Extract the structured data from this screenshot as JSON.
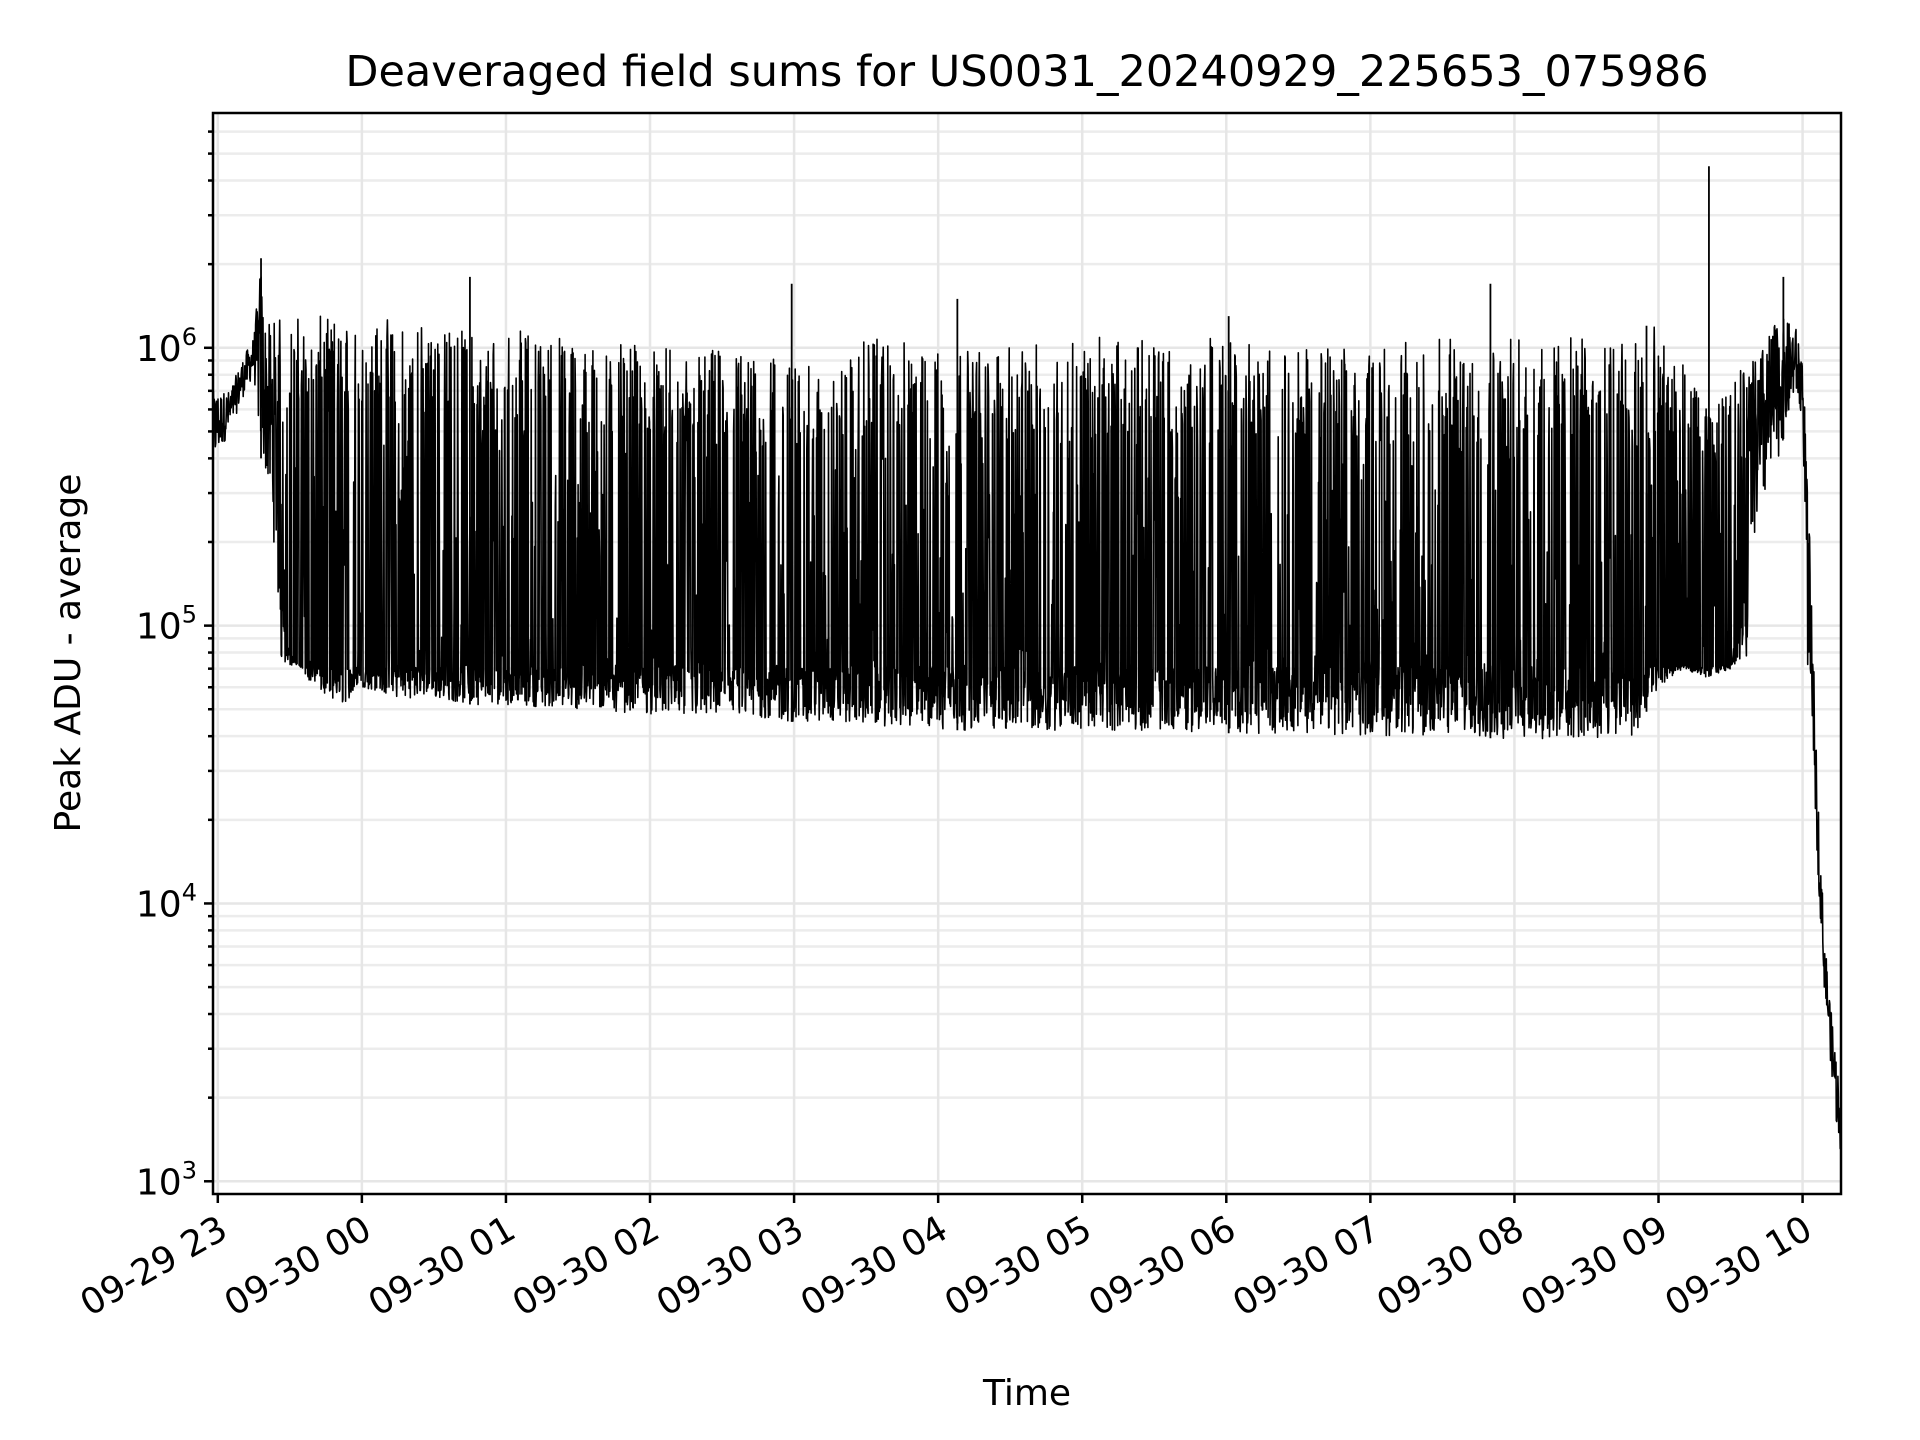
{
  "chart_data": {
    "type": "line",
    "title": "Deaveraged field sums for US0031_20240929_225653_075986",
    "xlabel": "Time",
    "ylabel": "Peak ADU - average",
    "yscale": "log",
    "ylim": [
      900,
      7000000
    ],
    "xlim": [
      "2024-09-29 22:58",
      "2024-09-30 10:16"
    ],
    "grid": true,
    "legend": "none",
    "x_ticks": [
      {
        "value": "2024-09-29 23:00",
        "label": "09-29 23"
      },
      {
        "value": "2024-09-30 00:00",
        "label": "09-30 00"
      },
      {
        "value": "2024-09-30 01:00",
        "label": "09-30 01"
      },
      {
        "value": "2024-09-30 02:00",
        "label": "09-30 02"
      },
      {
        "value": "2024-09-30 03:00",
        "label": "09-30 03"
      },
      {
        "value": "2024-09-30 04:00",
        "label": "09-30 04"
      },
      {
        "value": "2024-09-30 05:00",
        "label": "09-30 05"
      },
      {
        "value": "2024-09-30 06:00",
        "label": "09-30 06"
      },
      {
        "value": "2024-09-30 07:00",
        "label": "09-30 07"
      },
      {
        "value": "2024-09-30 08:00",
        "label": "09-30 08"
      },
      {
        "value": "2024-09-30 09:00",
        "label": "09-30 09"
      },
      {
        "value": "2024-09-30 10:00",
        "label": "09-30 10"
      }
    ],
    "y_ticks": [
      {
        "value": 1000,
        "base": "10",
        "exp": "3"
      },
      {
        "value": 10000,
        "base": "10",
        "exp": "4"
      },
      {
        "value": 100000,
        "base": "10",
        "exp": "5"
      },
      {
        "value": 1000000,
        "base": "10",
        "exp": "6"
      }
    ],
    "series": [
      {
        "color": "#000000",
        "x": [
          "2024-09-29 22:58",
          "2024-09-29 23:05",
          "2024-09-29 23:10",
          "2024-09-29 23:15",
          "2024-09-29 23:18",
          "2024-09-29 23:20",
          "2024-09-29 23:25",
          "2024-09-29 23:30",
          "2024-09-29 23:35",
          "2024-09-29 23:40",
          "2024-09-29 23:45",
          "2024-09-29 23:50",
          "2024-09-30 00:00",
          "2024-09-30 00:15",
          "2024-09-30 00:30",
          "2024-09-30 00:45",
          "2024-09-30 01:00",
          "2024-09-30 01:30",
          "2024-09-30 02:00",
          "2024-09-30 02:30",
          "2024-09-30 03:00",
          "2024-09-30 03:15",
          "2024-09-30 03:30",
          "2024-09-30 04:00",
          "2024-09-30 04:30",
          "2024-09-30 05:00",
          "2024-09-30 05:30",
          "2024-09-30 06:00",
          "2024-09-30 06:30",
          "2024-09-30 07:00",
          "2024-09-30 07:30",
          "2024-09-30 08:00",
          "2024-09-30 08:30",
          "2024-09-30 08:50",
          "2024-09-30 09:00",
          "2024-09-30 09:10",
          "2024-09-30 09:20",
          "2024-09-30 09:30",
          "2024-09-30 09:40",
          "2024-09-30 09:50",
          "2024-09-30 09:57",
          "2024-09-30 10:00",
          "2024-09-30 10:03",
          "2024-09-30 10:06",
          "2024-09-30 10:09",
          "2024-09-30 10:12",
          "2024-09-30 10:15"
        ],
        "y_low": [
          380000,
          500000,
          650000,
          800000,
          400000,
          350000,
          150000,
          80000,
          70000,
          60000,
          55000,
          50000,
          60000,
          55000,
          55000,
          52000,
          52000,
          50000,
          48000,
          46000,
          45000,
          45000,
          44000,
          42000,
          42000,
          42000,
          42000,
          41000,
          41000,
          40000,
          40000,
          39000,
          39000,
          40000,
          60000,
          70000,
          65000,
          70000,
          200000,
          400000,
          700000,
          500000,
          80000,
          15000,
          5000,
          2500,
          1300
        ],
        "y_high": [
          700000,
          700000,
          900000,
          1100000,
          2100000,
          1200000,
          1300000,
          1300000,
          1300000,
          1300000,
          1300000,
          1300000,
          1300000,
          1300000,
          1200000,
          1200000,
          1200000,
          1100000,
          1000000,
          1000000,
          900000,
          800000,
          1100000,
          1000000,
          1000000,
          1100000,
          1100000,
          1100000,
          1000000,
          1000000,
          1100000,
          1100000,
          1100000,
          1200000,
          1200000,
          900000,
          600000,
          800000,
          900000,
          1300000,
          1200000,
          1000000,
          200000,
          30000,
          8000,
          4000,
          2500
        ],
        "spikes": [
          {
            "x": "2024-09-29 23:18",
            "y": 2100000
          },
          {
            "x": "2024-09-30 00:45",
            "y": 1800000
          },
          {
            "x": "2024-09-30 02:59",
            "y": 1700000
          },
          {
            "x": "2024-09-30 04:08",
            "y": 1500000
          },
          {
            "x": "2024-09-30 06:01",
            "y": 1300000
          },
          {
            "x": "2024-09-30 07:50",
            "y": 1700000
          },
          {
            "x": "2024-09-30 08:55",
            "y": 1200000
          },
          {
            "x": "2024-09-30 09:21",
            "y": 4500000
          },
          {
            "x": "2024-09-30 09:52",
            "y": 1800000
          }
        ],
        "baseline_band": [
          35000,
          60000
        ],
        "note_level": "dense oscillation between y_low and y_high"
      }
    ]
  }
}
